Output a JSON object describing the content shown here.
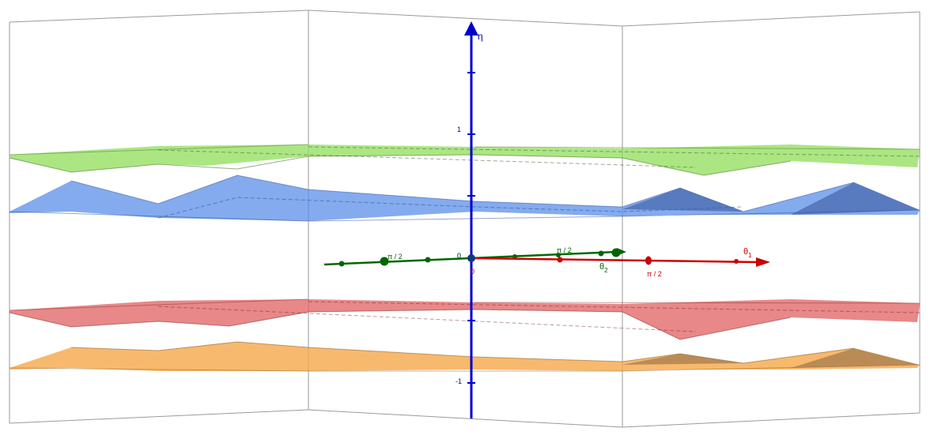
{
  "axes": {
    "eta": {
      "label": "η",
      "ticks": [
        "1",
        "0",
        "-1"
      ],
      "color": "#0000cc"
    },
    "theta1": {
      "label": "θ",
      "sub": "1",
      "ticks": [
        "π / 2",
        "0"
      ],
      "color": "#cc0000"
    },
    "theta2": {
      "label": "θ",
      "sub": "2",
      "ticks": [
        "π / 2",
        "π / 2",
        "0"
      ],
      "color": "#006600"
    }
  },
  "surfaces": [
    {
      "name": "green-band",
      "color": "#8fdd5a"
    },
    {
      "name": "blue-band",
      "color": "#5b8fe8"
    },
    {
      "name": "red-band",
      "color": "#e06060"
    },
    {
      "name": "orange-band",
      "color": "#f5a84a"
    }
  ]
}
